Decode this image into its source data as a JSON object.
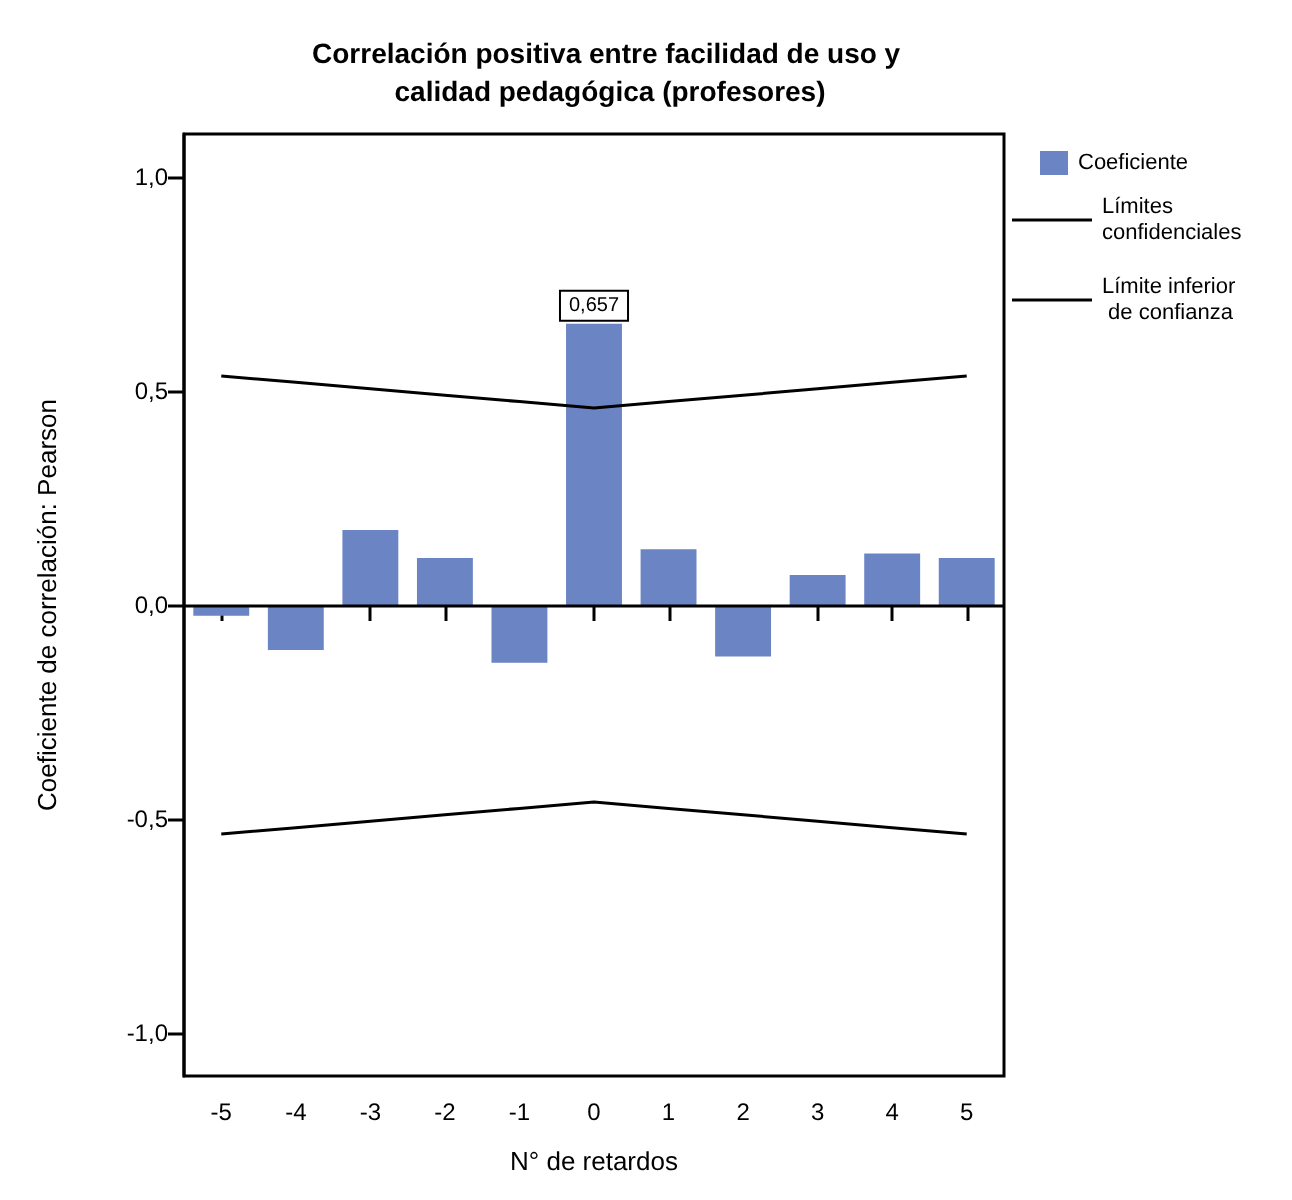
{
  "chart_data": {
    "type": "bar",
    "title": "Correlación positiva entre facilidad de uso y calidad pedagógica (profesores)",
    "xlabel": "N° de retardos",
    "ylabel": "Coeficiente de correlación: Pearson",
    "categories": [
      "-5",
      "-4",
      "-3",
      "-2",
      "-1",
      "0",
      "1",
      "2",
      "3",
      "4",
      "5"
    ],
    "series": [
      {
        "name": "Coeficiente",
        "color": "#6a84c4",
        "values": [
          -0.025,
          -0.105,
          0.175,
          0.11,
          -0.135,
          0.657,
          0.13,
          -0.12,
          0.07,
          0.12,
          0.11
        ],
        "value_labels": [
          null,
          null,
          null,
          null,
          null,
          "0,657",
          null,
          null,
          null,
          null,
          null
        ]
      },
      {
        "name": "Límites confidenciales",
        "type": "line",
        "color": "#000000",
        "values": [
          0.535,
          0.52,
          0.505,
          0.49,
          0.475,
          0.46,
          0.475,
          0.49,
          0.505,
          0.52,
          0.535
        ]
      },
      {
        "name": "Límite inferior de confianza",
        "type": "line",
        "color": "#000000",
        "values": [
          -0.535,
          -0.52,
          -0.505,
          -0.49,
          -0.475,
          -0.46,
          -0.475,
          -0.49,
          -0.505,
          -0.52,
          -0.535
        ]
      }
    ],
    "ylim": [
      -1.1,
      1.1
    ],
    "yticks": [
      {
        "value": -1,
        "label": "-1,0"
      },
      {
        "value": -0.5,
        "label": "-0,5"
      },
      {
        "value": 0,
        "label": "0,0"
      },
      {
        "value": 0.5,
        "label": "0,5"
      },
      {
        "value": 1,
        "label": "1,0"
      }
    ],
    "ref_lines": [
      {
        "axis": "y",
        "value": 0,
        "color": "#000000"
      }
    ],
    "legend": "right",
    "grid": false,
    "marker": "none"
  }
}
